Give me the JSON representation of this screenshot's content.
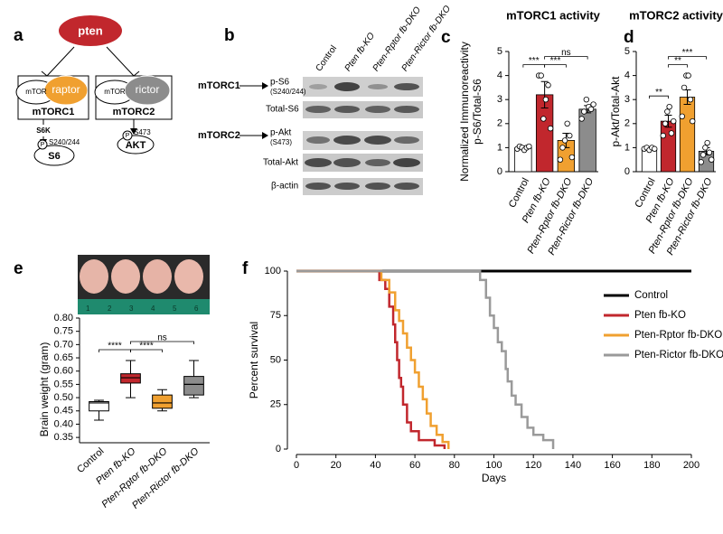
{
  "panel_labels": [
    "a",
    "b",
    "c",
    "d",
    "e",
    "f"
  ],
  "diagram": {
    "pten": "pten",
    "mtor1": "mTOR",
    "raptor": "raptor",
    "mtorc1": "mTORC1",
    "mtor2": "mTOR",
    "rictor": "rictor",
    "mtorc2": "mTORC2",
    "s6k": "S6K",
    "p1": "P",
    "site1": "S240/244",
    "s6": "S6",
    "p2": "P",
    "site2": "S473",
    "akt": "AKT"
  },
  "blot": {
    "lanes": [
      "Control",
      "Pten fb-KO",
      "Pten-Rptor fb-DKO",
      "Pten-Rictor fb-DKO"
    ],
    "rows": [
      {
        "group": "mTORC1",
        "label": "p-S6",
        "site": "(S240/244)"
      },
      {
        "label": "Total-S6"
      },
      {
        "group": "mTORC2",
        "label": "p-Akt",
        "site": "(S473)"
      },
      {
        "label": "Total-Akt"
      },
      {
        "label": "β-actin"
      }
    ]
  },
  "photo": {
    "ruler": [
      "1",
      "2",
      "3",
      "4",
      "5",
      "6"
    ]
  },
  "chart_data": [
    {
      "type": "bar",
      "title": "mTORC1 activity",
      "y_label": [
        "Normalized Immunoreactivity",
        "p-S6/Total-S6"
      ],
      "categories": [
        "Control",
        "Pten fb-KO",
        "Pten-Rptor fb-DKO",
        "Pten-Rictor fb-DKO"
      ],
      "values": [
        1.0,
        3.2,
        1.3,
        2.6
      ],
      "errors": [
        0.07,
        0.55,
        0.3,
        0.15
      ],
      "points": [
        [
          0.95,
          1.05,
          1.0,
          0.9,
          1.0,
          1.05
        ],
        [
          4.0,
          4.0,
          2.2,
          3.0,
          3.6,
          1.8
        ],
        [
          0.5,
          1.0,
          1.3,
          2.0,
          1.5,
          0.6
        ],
        [
          2.2,
          2.5,
          3.0,
          2.7,
          2.6,
          2.8
        ]
      ],
      "colors": [
        "#ffffff",
        "#c1272d",
        "#f0a030",
        "#8c8c8c"
      ],
      "ylim": [
        0,
        5
      ],
      "yticks": [
        0,
        1,
        2,
        3,
        4,
        5
      ],
      "significance": [
        {
          "from": 0,
          "to": 1,
          "label": "***"
        },
        {
          "from": 1,
          "to": 2,
          "label": "***"
        },
        {
          "from": 1,
          "to": 3,
          "label": "ns"
        }
      ]
    },
    {
      "type": "bar",
      "title": "mTORC2 activity",
      "y_label": [
        "p-Akt/Total-Akt"
      ],
      "categories": [
        "Control",
        "Pten fb-KO",
        "Pten-Rptor fb-DKO",
        "Pten-Rictor fb-DKO"
      ],
      "values": [
        0.95,
        2.1,
        3.1,
        0.85
      ],
      "errors": [
        0.03,
        0.25,
        0.3,
        0.15
      ],
      "points": [
        [
          0.95,
          1.0,
          0.9,
          1.0,
          0.95
        ],
        [
          1.5,
          2.0,
          2.5,
          2.7,
          1.6,
          2.1
        ],
        [
          2.3,
          3.5,
          4.0,
          4.0,
          3.0,
          2.1
        ],
        [
          0.4,
          0.7,
          1.0,
          1.2,
          0.8,
          0.5
        ]
      ],
      "colors": [
        "#ffffff",
        "#c1272d",
        "#f0a030",
        "#8c8c8c"
      ],
      "ylim": [
        0,
        5
      ],
      "yticks": [
        0,
        1,
        2,
        3,
        4,
        5
      ],
      "significance": [
        {
          "from": 0,
          "to": 1,
          "label": "**"
        },
        {
          "from": 1,
          "to": 2,
          "label": "**"
        },
        {
          "from": 1,
          "to": 3,
          "label": "***"
        }
      ]
    },
    {
      "type": "box",
      "y_label": [
        "Brain weight (gram)"
      ],
      "categories": [
        "Control",
        "Pten fb-KO",
        "Pten-Rptor fb-DKO",
        "Pten-Rictor fb-DKO"
      ],
      "whislo": [
        0.415,
        0.5,
        0.45,
        0.5
      ],
      "q1": [
        0.45,
        0.555,
        0.46,
        0.51
      ],
      "med": [
        0.48,
        0.575,
        0.48,
        0.55
      ],
      "q3": [
        0.485,
        0.59,
        0.51,
        0.58
      ],
      "whishi": [
        0.49,
        0.64,
        0.53,
        0.64
      ],
      "colors": [
        "#ffffff",
        "#c1272d",
        "#f0a030",
        "#8c8c8c"
      ],
      "ylim": [
        0.33,
        0.8
      ],
      "yticks": [
        0.35,
        {
          "value": 0.4,
          "label": "0.40"
        },
        0.45,
        {
          "value": 0.5,
          "label": "0.50"
        },
        0.55,
        {
          "value": 0.6,
          "label": "0.60"
        },
        0.65,
        {
          "value": 0.7,
          "label": "0.70"
        },
        0.75,
        {
          "value": 0.8,
          "label": "0.80"
        }
      ],
      "significance": [
        {
          "from": 0,
          "to": 1,
          "label": "****"
        },
        {
          "from": 1,
          "to": 2,
          "label": "****"
        },
        {
          "from": 1,
          "to": 3,
          "label": "ns"
        }
      ]
    },
    {
      "type": "line",
      "x_label": "Days",
      "y_label": [
        "Percent survival"
      ],
      "xlim": [
        0,
        200
      ],
      "xticks": [
        0,
        20,
        40,
        60,
        80,
        100,
        120,
        140,
        160,
        180,
        200
      ],
      "ylim": [
        0,
        100
      ],
      "yticks": [
        0,
        25,
        50,
        75,
        100
      ],
      "series": [
        {
          "name": "Control",
          "color": "#000000",
          "x": [
            0,
            200
          ],
          "values": [
            100,
            100
          ]
        },
        {
          "name": "Pten fb-KO",
          "color": "#c1272d",
          "x": [
            0,
            42,
            42,
            45,
            45,
            47,
            47,
            49,
            49,
            50,
            50,
            51,
            51,
            52,
            52,
            53,
            53,
            54,
            54,
            56,
            56,
            58,
            58,
            62,
            62,
            70,
            70,
            75,
            75
          ],
          "values": [
            100,
            100,
            95,
            95,
            90,
            90,
            80,
            80,
            70,
            70,
            60,
            60,
            50,
            50,
            40,
            40,
            35,
            35,
            25,
            25,
            15,
            15,
            10,
            10,
            5,
            5,
            2,
            2,
            0
          ]
        },
        {
          "name": "Pten-Rptor fb-DKO",
          "color": "#f0a030",
          "x": [
            0,
            43,
            43,
            47,
            47,
            50,
            50,
            52,
            52,
            54,
            54,
            56,
            56,
            58,
            58,
            60,
            60,
            62,
            62,
            64,
            64,
            66,
            66,
            68,
            68,
            71,
            71,
            74,
            74,
            77,
            77
          ],
          "values": [
            100,
            100,
            95,
            95,
            88,
            88,
            78,
            78,
            72,
            72,
            65,
            65,
            57,
            57,
            50,
            50,
            43,
            43,
            35,
            35,
            28,
            28,
            20,
            20,
            13,
            13,
            8,
            8,
            4,
            4,
            0
          ]
        },
        {
          "name": "Pten-Rictor fb-DKO",
          "color": "#9a9a9a",
          "x": [
            0,
            93,
            93,
            96,
            96,
            98,
            98,
            100,
            100,
            102,
            102,
            104,
            104,
            106,
            106,
            107,
            107,
            109,
            109,
            111,
            111,
            114,
            114,
            117,
            117,
            120,
            120,
            125,
            125,
            130,
            130
          ],
          "values": [
            100,
            100,
            95,
            95,
            85,
            85,
            75,
            75,
            68,
            68,
            60,
            60,
            55,
            55,
            45,
            45,
            38,
            38,
            30,
            30,
            25,
            25,
            18,
            18,
            12,
            12,
            8,
            8,
            5,
            5,
            0
          ]
        }
      ]
    }
  ]
}
